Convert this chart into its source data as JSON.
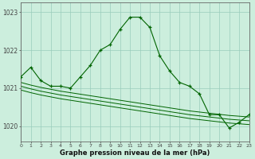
{
  "x": [
    0,
    1,
    2,
    3,
    4,
    5,
    6,
    7,
    8,
    9,
    10,
    11,
    12,
    13,
    14,
    15,
    16,
    17,
    18,
    19,
    20,
    21,
    22,
    23
  ],
  "y_main": [
    1021.3,
    1021.55,
    1021.2,
    1021.05,
    1021.05,
    1021.0,
    1021.3,
    1021.6,
    1022.0,
    1022.15,
    1022.55,
    1022.87,
    1022.87,
    1022.6,
    1021.85,
    1021.45,
    1021.15,
    1021.05,
    1020.85,
    1020.3,
    1020.3,
    1019.95,
    1020.1,
    1020.3
  ],
  "y_band1": [
    1021.15,
    1021.08,
    1021.02,
    1020.97,
    1020.92,
    1020.88,
    1020.84,
    1020.8,
    1020.76,
    1020.72,
    1020.68,
    1020.64,
    1020.6,
    1020.56,
    1020.52,
    1020.48,
    1020.44,
    1020.4,
    1020.37,
    1020.34,
    1020.31,
    1020.28,
    1020.26,
    1020.24
  ],
  "y_band2": [
    1021.05,
    1020.98,
    1020.92,
    1020.87,
    1020.82,
    1020.78,
    1020.74,
    1020.7,
    1020.66,
    1020.62,
    1020.58,
    1020.54,
    1020.5,
    1020.46,
    1020.42,
    1020.38,
    1020.34,
    1020.3,
    1020.27,
    1020.24,
    1020.21,
    1020.18,
    1020.16,
    1020.14
  ],
  "y_band3": [
    1020.95,
    1020.88,
    1020.82,
    1020.77,
    1020.72,
    1020.68,
    1020.64,
    1020.6,
    1020.56,
    1020.52,
    1020.48,
    1020.44,
    1020.4,
    1020.36,
    1020.32,
    1020.28,
    1020.24,
    1020.2,
    1020.17,
    1020.14,
    1020.11,
    1020.08,
    1020.06,
    1020.04
  ],
  "line_color": "#006400",
  "bg_color": "#cceedd",
  "grid_color": "#99ccbb",
  "xlabel": "Graphe pression niveau de la mer (hPa)",
  "yticks": [
    1020,
    1021,
    1022,
    1023
  ],
  "ylim": [
    1019.6,
    1023.25
  ],
  "xlim": [
    0,
    23
  ]
}
